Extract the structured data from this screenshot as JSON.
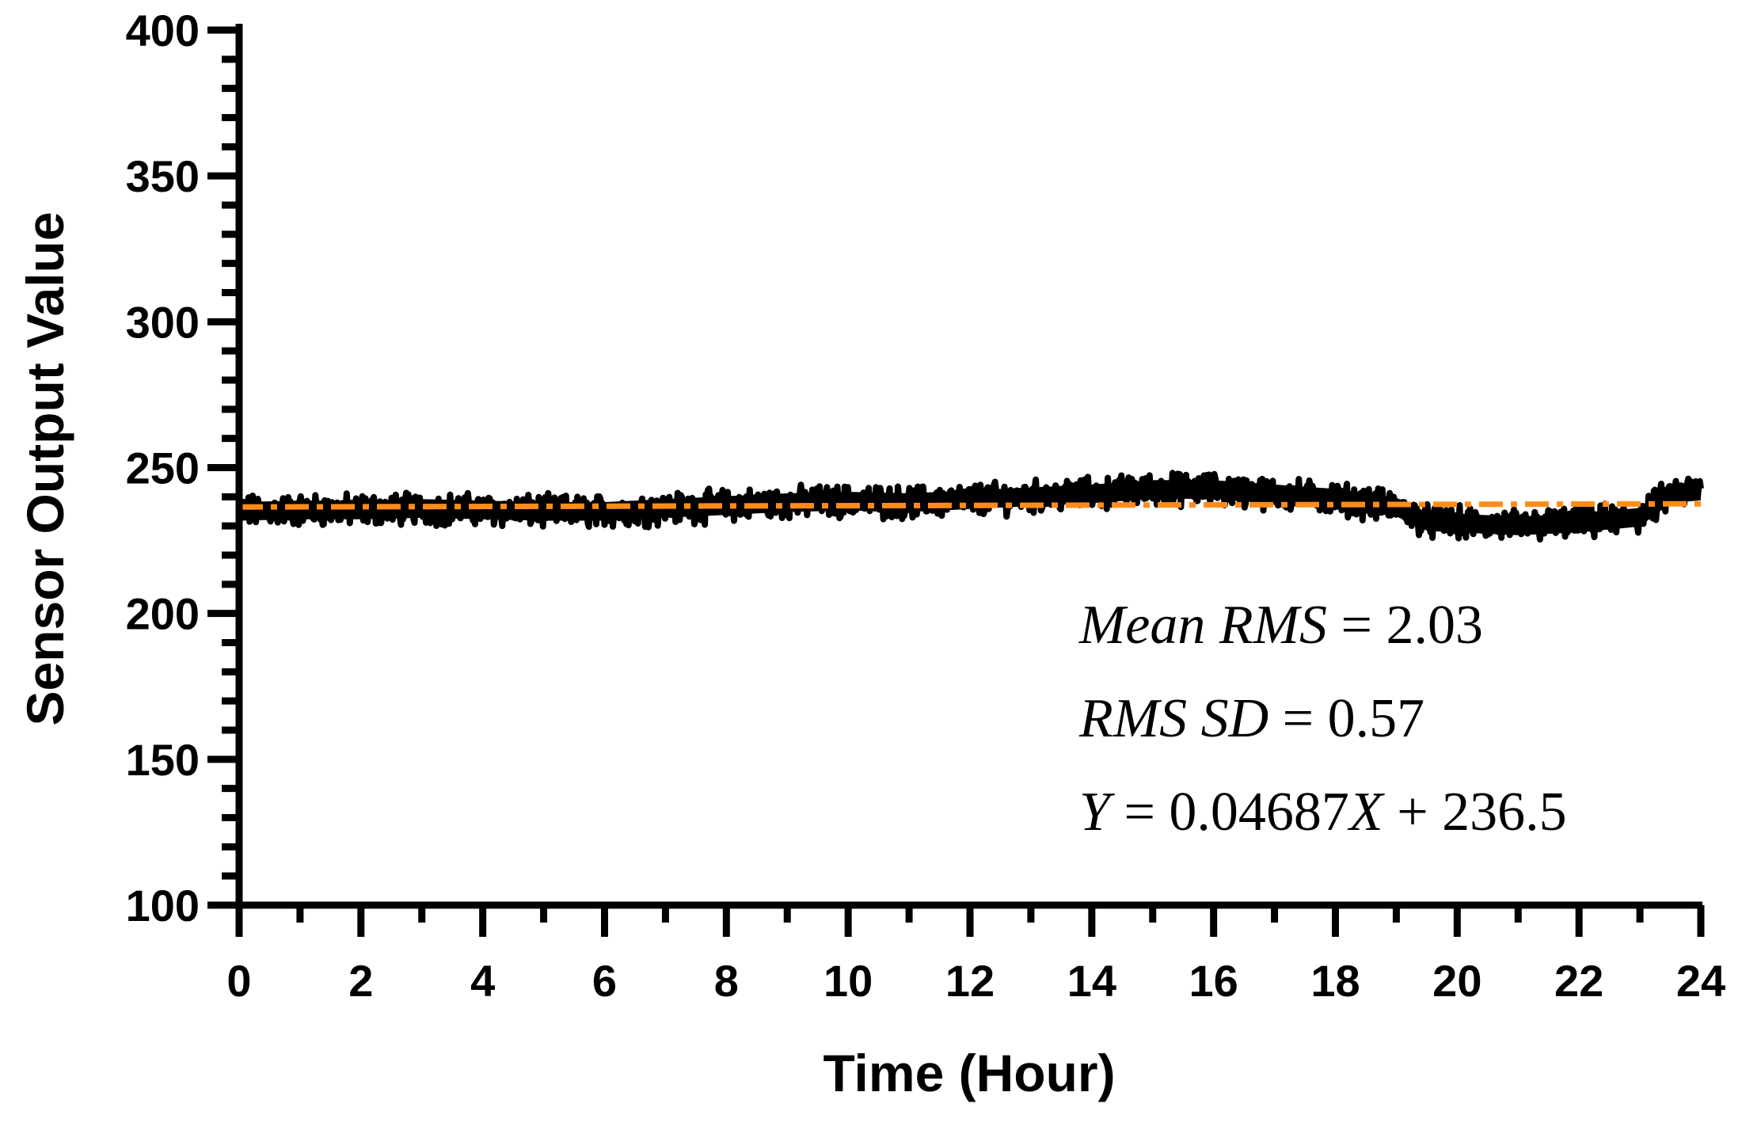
{
  "chart_data": {
    "type": "line",
    "title": "",
    "xlabel": "Time (Hour)",
    "ylabel": "Sensor Output Value",
    "xlim": [
      0,
      24
    ],
    "ylim": [
      100,
      400
    ],
    "x_ticks": [
      "0",
      "2",
      "4",
      "6",
      "8",
      "10",
      "12",
      "14",
      "16",
      "18",
      "20",
      "22",
      "24"
    ],
    "y_ticks": [
      "100",
      "150",
      "200",
      "250",
      "300",
      "350",
      "400"
    ],
    "grid": false,
    "series": [
      {
        "color": "#000000",
        "style": "dense noisy trace",
        "x": [
          0,
          1,
          2,
          3,
          4,
          5,
          6,
          7,
          8,
          9,
          10,
          11,
          12,
          13,
          14,
          15,
          16,
          17,
          18,
          19,
          19.5,
          20,
          21,
          22,
          23,
          23.5,
          24
        ],
        "y": [
          235,
          235.5,
          235.5,
          236,
          235.5,
          235,
          235,
          236,
          237,
          238,
          238.5,
          238,
          239,
          240,
          241,
          242.5,
          242.5,
          241,
          239.5,
          236.5,
          231.5,
          231,
          230,
          231,
          233,
          241,
          242
        ]
      },
      {
        "color": "#ff8c1a",
        "style": "dash-dot fit line",
        "x": [
          0,
          24
        ],
        "y": [
          236.5,
          237.6
        ]
      }
    ],
    "annotations": {
      "mean_rms": {
        "lhs": "Mean RMS",
        "rhs": "2.03"
      },
      "rms_sd": {
        "lhs": "RMS SD",
        "rhs": "0.57"
      },
      "fit": {
        "y": "Y",
        "slope": "0.04687",
        "x": "X",
        "intercept": "236.5"
      }
    }
  }
}
